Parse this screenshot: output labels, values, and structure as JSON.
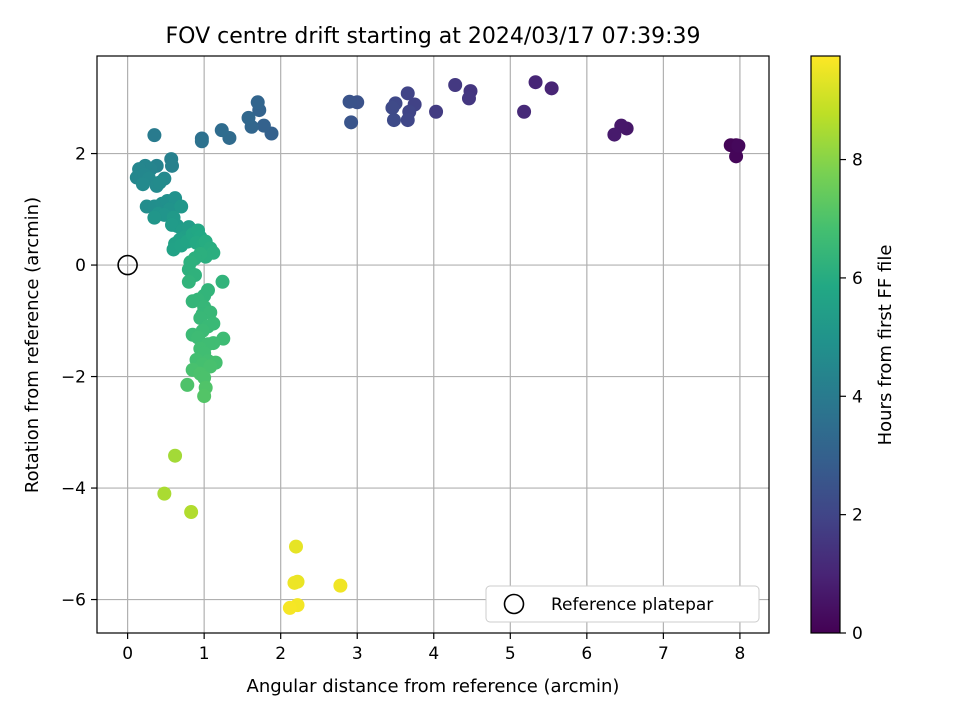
{
  "chart_data": {
    "type": "scatter",
    "title": "FOV centre drift starting at 2024/03/17 07:39:39",
    "xlabel": "Angular distance from reference (arcmin)",
    "ylabel": "Rotation from reference (arcmin)",
    "xlim": [
      -0.4,
      8.38
    ],
    "ylim": [
      -6.6,
      3.75
    ],
    "xticks": [
      0,
      1,
      2,
      3,
      4,
      5,
      6,
      7,
      8
    ],
    "yticks": [
      -6,
      -4,
      -2,
      0,
      2
    ],
    "grid": true,
    "colormap": "viridis",
    "colorbar": {
      "label": "Hours from first FF file",
      "range": [
        0,
        9.75
      ],
      "ticks": [
        0,
        2,
        4,
        6,
        8
      ]
    },
    "legend": {
      "placement": "lower-right",
      "entries": [
        "Reference platepar"
      ]
    },
    "reference_point": {
      "x": 0,
      "y": 0
    },
    "points": [
      {
        "x": 7.95,
        "y": 2.15,
        "t": 0.05
      },
      {
        "x": 7.88,
        "y": 2.15,
        "t": 0.1
      },
      {
        "x": 7.95,
        "y": 1.95,
        "t": 0.15
      },
      {
        "x": 7.98,
        "y": 2.14,
        "t": 0.2
      },
      {
        "x": 6.52,
        "y": 2.45,
        "t": 0.6
      },
      {
        "x": 6.45,
        "y": 2.5,
        "t": 0.65
      },
      {
        "x": 6.36,
        "y": 2.34,
        "t": 0.7
      },
      {
        "x": 5.54,
        "y": 3.17,
        "t": 1.0
      },
      {
        "x": 5.33,
        "y": 3.28,
        "t": 1.05
      },
      {
        "x": 5.18,
        "y": 2.75,
        "t": 1.15
      },
      {
        "x": 4.48,
        "y": 3.12,
        "t": 1.5
      },
      {
        "x": 4.46,
        "y": 2.99,
        "t": 1.55
      },
      {
        "x": 4.28,
        "y": 3.23,
        "t": 1.6
      },
      {
        "x": 4.03,
        "y": 2.75,
        "t": 1.7
      },
      {
        "x": 3.75,
        "y": 2.88,
        "t": 1.9
      },
      {
        "x": 3.66,
        "y": 3.08,
        "t": 1.95
      },
      {
        "x": 3.68,
        "y": 2.75,
        "t": 2.0
      },
      {
        "x": 3.66,
        "y": 2.6,
        "t": 2.05
      },
      {
        "x": 3.5,
        "y": 2.9,
        "t": 2.1
      },
      {
        "x": 3.46,
        "y": 2.82,
        "t": 2.15
      },
      {
        "x": 3.48,
        "y": 2.6,
        "t": 2.2
      },
      {
        "x": 3.0,
        "y": 2.92,
        "t": 2.45
      },
      {
        "x": 2.9,
        "y": 2.93,
        "t": 2.5
      },
      {
        "x": 2.92,
        "y": 2.56,
        "t": 2.55
      },
      {
        "x": 1.88,
        "y": 2.36,
        "t": 3.0
      },
      {
        "x": 1.78,
        "y": 2.5,
        "t": 3.05
      },
      {
        "x": 1.72,
        "y": 2.78,
        "t": 3.1
      },
      {
        "x": 1.7,
        "y": 2.92,
        "t": 3.15
      },
      {
        "x": 1.62,
        "y": 2.48,
        "t": 3.2
      },
      {
        "x": 1.58,
        "y": 2.64,
        "t": 3.25
      },
      {
        "x": 1.33,
        "y": 2.28,
        "t": 3.4
      },
      {
        "x": 1.23,
        "y": 2.42,
        "t": 3.45
      },
      {
        "x": 0.97,
        "y": 2.27,
        "t": 3.6
      },
      {
        "x": 0.97,
        "y": 2.22,
        "t": 3.65
      },
      {
        "x": 0.35,
        "y": 2.33,
        "t": 4.0
      },
      {
        "x": 0.57,
        "y": 1.9,
        "t": 4.2
      },
      {
        "x": 0.58,
        "y": 1.78,
        "t": 4.25
      },
      {
        "x": 0.38,
        "y": 1.78,
        "t": 4.3
      },
      {
        "x": 0.3,
        "y": 1.72,
        "t": 4.35
      },
      {
        "x": 0.23,
        "y": 1.78,
        "t": 4.4
      },
      {
        "x": 0.15,
        "y": 1.72,
        "t": 4.45
      },
      {
        "x": 0.12,
        "y": 1.57,
        "t": 4.5
      },
      {
        "x": 0.22,
        "y": 1.62,
        "t": 4.5
      },
      {
        "x": 0.28,
        "y": 1.55,
        "t": 4.55
      },
      {
        "x": 0.48,
        "y": 1.55,
        "t": 4.55
      },
      {
        "x": 0.2,
        "y": 1.45,
        "t": 4.6
      },
      {
        "x": 0.38,
        "y": 1.42,
        "t": 4.6
      },
      {
        "x": 0.42,
        "y": 1.48,
        "t": 4.65
      },
      {
        "x": 0.25,
        "y": 1.05,
        "t": 4.7
      },
      {
        "x": 0.35,
        "y": 1.05,
        "t": 4.75
      },
      {
        "x": 0.45,
        "y": 1.1,
        "t": 4.8
      },
      {
        "x": 0.52,
        "y": 1.15,
        "t": 4.85
      },
      {
        "x": 0.62,
        "y": 1.2,
        "t": 4.9
      },
      {
        "x": 0.55,
        "y": 1.0,
        "t": 4.95
      },
      {
        "x": 0.4,
        "y": 0.92,
        "t": 5.0
      },
      {
        "x": 0.48,
        "y": 0.9,
        "t": 5.05
      },
      {
        "x": 0.35,
        "y": 0.85,
        "t": 5.1
      },
      {
        "x": 0.7,
        "y": 1.05,
        "t": 5.15
      },
      {
        "x": 0.6,
        "y": 0.85,
        "t": 5.2
      },
      {
        "x": 0.65,
        "y": 0.7,
        "t": 5.25
      },
      {
        "x": 0.58,
        "y": 0.72,
        "t": 5.3
      },
      {
        "x": 0.72,
        "y": 0.62,
        "t": 5.35
      },
      {
        "x": 0.8,
        "y": 0.68,
        "t": 5.4
      },
      {
        "x": 0.75,
        "y": 0.5,
        "t": 5.45
      },
      {
        "x": 0.68,
        "y": 0.45,
        "t": 5.5
      },
      {
        "x": 0.62,
        "y": 0.38,
        "t": 5.55
      },
      {
        "x": 0.6,
        "y": 0.28,
        "t": 5.6
      },
      {
        "x": 0.7,
        "y": 0.35,
        "t": 5.65
      },
      {
        "x": 0.78,
        "y": 0.42,
        "t": 5.7
      },
      {
        "x": 0.85,
        "y": 0.55,
        "t": 5.75
      },
      {
        "x": 0.92,
        "y": 0.62,
        "t": 5.8
      },
      {
        "x": 0.95,
        "y": 0.5,
        "t": 5.85
      },
      {
        "x": 0.9,
        "y": 0.4,
        "t": 5.9
      },
      {
        "x": 0.98,
        "y": 0.35,
        "t": 5.95
      },
      {
        "x": 1.02,
        "y": 0.42,
        "t": 6.0
      },
      {
        "x": 1.08,
        "y": 0.3,
        "t": 6.05
      },
      {
        "x": 1.12,
        "y": 0.22,
        "t": 6.1
      },
      {
        "x": 1.02,
        "y": 0.15,
        "t": 6.1
      },
      {
        "x": 0.95,
        "y": 0.2,
        "t": 6.15
      },
      {
        "x": 0.88,
        "y": 0.12,
        "t": 6.15
      },
      {
        "x": 0.82,
        "y": 0.05,
        "t": 6.2
      },
      {
        "x": 0.8,
        "y": -0.08,
        "t": 6.2
      },
      {
        "x": 0.88,
        "y": -0.18,
        "t": 6.25
      },
      {
        "x": 0.8,
        "y": -0.3,
        "t": 6.3
      },
      {
        "x": 1.24,
        "y": -0.3,
        "t": 6.3
      },
      {
        "x": 1.05,
        "y": -0.45,
        "t": 6.35
      },
      {
        "x": 1.0,
        "y": -0.55,
        "t": 6.35
      },
      {
        "x": 0.92,
        "y": -0.62,
        "t": 6.4
      },
      {
        "x": 0.85,
        "y": -0.65,
        "t": 6.4
      },
      {
        "x": 1.0,
        "y": -0.75,
        "t": 6.45
      },
      {
        "x": 0.98,
        "y": -0.88,
        "t": 6.45
      },
      {
        "x": 1.08,
        "y": -0.85,
        "t": 6.5
      },
      {
        "x": 0.95,
        "y": -0.95,
        "t": 6.5
      },
      {
        "x": 1.12,
        "y": -1.05,
        "t": 6.55
      },
      {
        "x": 1.05,
        "y": -1.1,
        "t": 6.55
      },
      {
        "x": 0.98,
        "y": -1.18,
        "t": 6.6
      },
      {
        "x": 0.85,
        "y": -1.25,
        "t": 6.6
      },
      {
        "x": 0.92,
        "y": -1.3,
        "t": 6.65
      },
      {
        "x": 1.25,
        "y": -1.32,
        "t": 6.65
      },
      {
        "x": 1.12,
        "y": -1.4,
        "t": 6.7
      },
      {
        "x": 1.05,
        "y": -1.42,
        "t": 6.7
      },
      {
        "x": 0.95,
        "y": -1.5,
        "t": 6.75
      },
      {
        "x": 1.0,
        "y": -1.58,
        "t": 6.75
      },
      {
        "x": 0.9,
        "y": -1.7,
        "t": 6.8
      },
      {
        "x": 1.05,
        "y": -1.72,
        "t": 6.8
      },
      {
        "x": 1.15,
        "y": -1.75,
        "t": 6.85
      },
      {
        "x": 0.98,
        "y": -1.78,
        "t": 6.85
      },
      {
        "x": 1.08,
        "y": -1.82,
        "t": 6.9
      },
      {
        "x": 0.85,
        "y": -1.88,
        "t": 6.9
      },
      {
        "x": 0.95,
        "y": -1.95,
        "t": 6.95
      },
      {
        "x": 1.0,
        "y": -2.02,
        "t": 6.95
      },
      {
        "x": 0.78,
        "y": -2.15,
        "t": 7.0
      },
      {
        "x": 1.02,
        "y": -2.2,
        "t": 7.05
      },
      {
        "x": 1.0,
        "y": -2.35,
        "t": 7.1
      },
      {
        "x": 0.62,
        "y": -3.42,
        "t": 8.4
      },
      {
        "x": 0.48,
        "y": -4.1,
        "t": 8.5
      },
      {
        "x": 0.83,
        "y": -4.43,
        "t": 8.6
      },
      {
        "x": 2.2,
        "y": -5.05,
        "t": 9.4
      },
      {
        "x": 2.22,
        "y": -5.68,
        "t": 9.45
      },
      {
        "x": 2.18,
        "y": -5.7,
        "t": 9.5
      },
      {
        "x": 2.78,
        "y": -5.75,
        "t": 9.55
      },
      {
        "x": 2.22,
        "y": -6.1,
        "t": 9.6
      },
      {
        "x": 2.12,
        "y": -6.15,
        "t": 9.65
      }
    ]
  }
}
